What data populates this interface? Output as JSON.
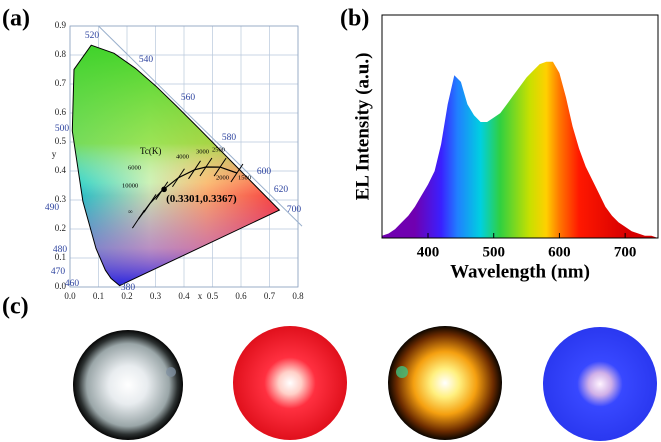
{
  "panel_labels": [
    "(a)",
    "(b)",
    "(c)"
  ],
  "chart_data": [
    {
      "type": "scatter",
      "xlabel": "x",
      "ylabel": "y",
      "x": [
        0.3301
      ],
      "values": [
        0.3367
      ],
      "point_label": "(0.3301,0.3367)",
      "color": "#000000",
      "xlim": [
        0,
        0.8
      ],
      "ylim": [
        0,
        0.9
      ],
      "xticks": [
        {
          "value": 0,
          "label": "0.0"
        },
        0.1,
        0.2,
        0.3,
        0.4,
        0.5,
        0.6,
        0.7,
        0.8
      ],
      "yticks": [
        {
          "value": 0,
          "label": "0.0"
        },
        0.1,
        0.2,
        0.3,
        0.4,
        0.5,
        0.6,
        0.7,
        0.8,
        0.9
      ],
      "grid": true,
      "locus_labels": [
        "520",
        "540",
        "560",
        "580",
        "600",
        "620",
        "700",
        "500",
        "490",
        "480",
        "470",
        "460",
        "380"
      ],
      "cct_title": "Tc(K)",
      "cct_labels": [
        "10000",
        "6000",
        "4000",
        "3000",
        "2500",
        "2000",
        "1500",
        "∞"
      ]
    },
    {
      "type": "area",
      "xlabel": "Wavelength (nm)",
      "ylabel": "EL Intensity (a.u.)",
      "x": [
        330,
        340,
        350,
        360,
        370,
        380,
        390,
        400,
        410,
        420,
        430,
        440,
        450,
        460,
        470,
        480,
        490,
        500,
        510,
        520,
        530,
        540,
        550,
        560,
        570,
        580,
        590,
        600,
        610,
        620,
        630,
        640,
        650,
        660,
        670,
        680,
        690,
        700,
        710,
        720,
        730,
        740,
        750
      ],
      "values": [
        0.01,
        0.02,
        0.04,
        0.07,
        0.1,
        0.14,
        0.19,
        0.24,
        0.3,
        0.42,
        0.6,
        0.73,
        0.7,
        0.6,
        0.55,
        0.52,
        0.52,
        0.54,
        0.56,
        0.6,
        0.64,
        0.68,
        0.72,
        0.75,
        0.78,
        0.79,
        0.79,
        0.74,
        0.63,
        0.5,
        0.4,
        0.32,
        0.26,
        0.2,
        0.14,
        0.1,
        0.07,
        0.05,
        0.03,
        0.02,
        0.01,
        0.01,
        0
      ],
      "xlim": [
        330,
        750
      ],
      "ylim": [
        0,
        1
      ],
      "xticks": [
        400,
        500,
        600,
        700
      ]
    }
  ]
}
